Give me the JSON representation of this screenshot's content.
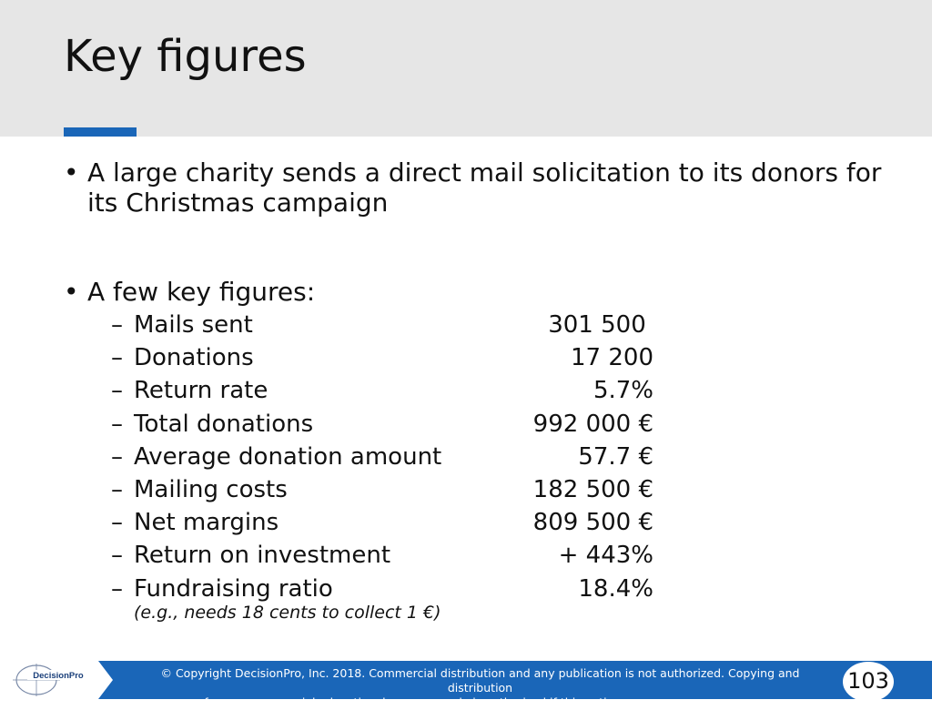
{
  "slide": {
    "title": "Key figures",
    "bullets": [
      {
        "text": "A large charity sends a direct mail solicitation to its donors for its Christmas campaign"
      },
      {
        "text": "A few key figures:"
      }
    ],
    "figures": [
      {
        "label": "Mails sent",
        "value": "301 500 "
      },
      {
        "label": "Donations",
        "value": "17 200"
      },
      {
        "label": "Return rate",
        "value": "5.7%"
      },
      {
        "label": "Total donations",
        "value": "992 000 €"
      },
      {
        "label": "Average donation amount",
        "value": "57.7 €"
      },
      {
        "label": "Mailing costs",
        "value": "182 500 €"
      },
      {
        "label": "Net margins",
        "value": "809 500 €"
      },
      {
        "label": "Return on investment",
        "value": "+ 443%"
      },
      {
        "label": "Fundraising ratio",
        "value": "18.4%"
      }
    ],
    "figures_note": "(e.g., needs 18 cents to collect 1 €)",
    "bullet_glyph": "•",
    "dash_glyph": "–"
  },
  "footer": {
    "logo_text": "DecisionPro",
    "copyright_line1": "© Copyright DecisionPro, Inc.  2018. Commercial distribution and any publication is not authorized. Copying and distribution",
    "copyright_line2": "for non-commercial educational purposes only is authorized if this notice appears on every copy.",
    "page_number": "103"
  },
  "colors": {
    "header_band": "#e6e6e6",
    "accent": "#1a66b8",
    "footer_bar": "#1a66b8",
    "text": "#111111"
  }
}
